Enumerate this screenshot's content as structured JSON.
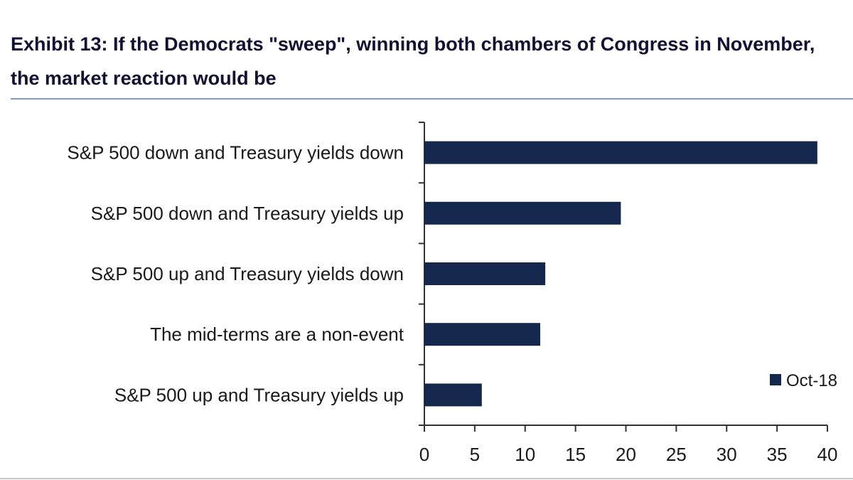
{
  "header": {
    "title": "Exhibit 13: If the Democrats \"sweep\", winning both chambers of Congress in November, the market reaction would be"
  },
  "colors": {
    "bar": "#13284c",
    "axis": "#333333"
  },
  "chart_data": {
    "type": "bar",
    "orientation": "horizontal",
    "categories": [
      "S&P 500 down and Treasury yields down",
      "S&P 500 down and Treasury yields up",
      "S&P 500 up and Treasury yields down",
      "The mid-terms are a non-event",
      "S&P 500 up and Treasury yields up"
    ],
    "series": [
      {
        "name": "Oct-18",
        "values": [
          39,
          19.5,
          12,
          11.5,
          5.7
        ]
      }
    ],
    "xlim": [
      0,
      40
    ],
    "xticks": [
      0,
      5,
      10,
      15,
      20,
      25,
      30,
      35,
      40
    ],
    "title": "",
    "xlabel": "",
    "ylabel": "",
    "grid": false,
    "legend": "bottom-right"
  }
}
